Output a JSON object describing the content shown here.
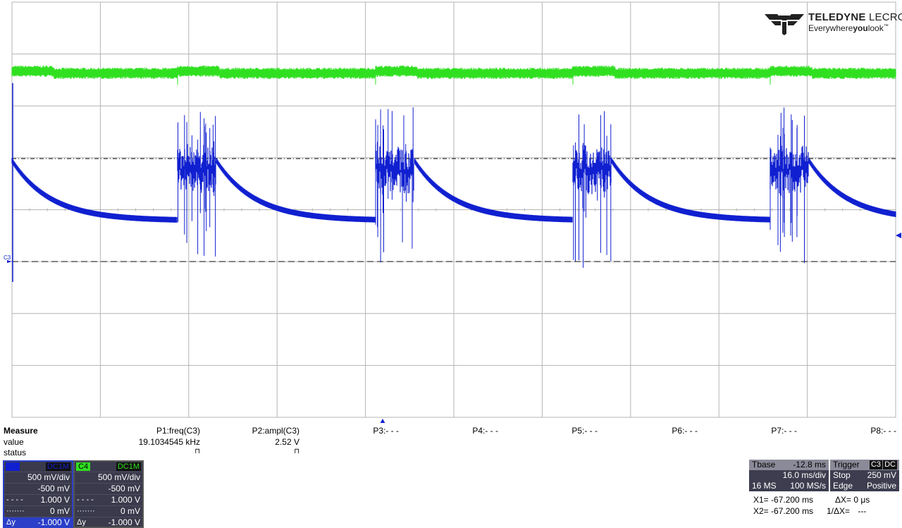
{
  "brand": {
    "name_bold": "TELEDYNE",
    "name_light": "LECROY",
    "tagline_pre": "Everywhere",
    "tagline_bold": "you",
    "tagline_post": "look",
    "tm": "™",
    "color": "#222222"
  },
  "screen": {
    "grid_color": "#b4b4b4",
    "trace_colors": {
      "C3": "#1020d0",
      "C4": "#30e020"
    },
    "c3_marker_label": "C3"
  },
  "measure": {
    "label": "Measure",
    "rows": [
      "value",
      "status"
    ],
    "params": [
      {
        "name": "P1:freq(C3)",
        "value": "19.1034545 kHz",
        "status": "⊓"
      },
      {
        "name": "P2:ampl(C3)",
        "value": "2.52 V",
        "status": "⊓"
      },
      {
        "name": "P3:- - -",
        "value": "",
        "status": ""
      },
      {
        "name": "P4:- - -",
        "value": "",
        "status": ""
      },
      {
        "name": "P5:- - -",
        "value": "",
        "status": ""
      },
      {
        "name": "P6:- - -",
        "value": "",
        "status": ""
      },
      {
        "name": "P7:- - -",
        "value": "",
        "status": ""
      },
      {
        "name": "P8:- - -",
        "value": "",
        "status": ""
      }
    ]
  },
  "channels": [
    {
      "tag": "C3",
      "coupling": "DC1M",
      "tag_color": "#1020d0",
      "scale": "500 mV/div",
      "offset": "-500 mV",
      "line1_label": "- - - -",
      "line1_value": "1.000 V",
      "line2_label": "·······",
      "line2_value": "0 mV",
      "line3_label": "Δy",
      "line3_value": "-1.000 V"
    },
    {
      "tag": "C4",
      "coupling": "DC1M",
      "tag_color": "#30e020",
      "scale": "500 mV/div",
      "offset": "-500 mV",
      "line1_label": "- - - -",
      "line1_value": "1.000 V",
      "line2_label": "·······",
      "line2_value": "0 mV",
      "line3_label": "Δy",
      "line3_value": "-1.000 V"
    }
  ],
  "timebase": {
    "label": "Tbase",
    "delay": "-12.8 ms",
    "scale": "16.0 ms/div",
    "samples": "16 MS",
    "rate": "100 MS/s"
  },
  "trigger": {
    "label": "Trigger",
    "source": "C3",
    "coupling": "DC",
    "mode": "Stop",
    "level": "250 mV",
    "type": "Edge",
    "slope": "Positive"
  },
  "cursors": {
    "x1_label": "X1=",
    "x1_value": "-67.200 ms",
    "x2_label": "X2=",
    "x2_value": "-67.200 ms",
    "dx_label": "ΔX=",
    "dx_value": "0 μs",
    "inv_label": "1/ΔX=",
    "inv_value": "---"
  }
}
